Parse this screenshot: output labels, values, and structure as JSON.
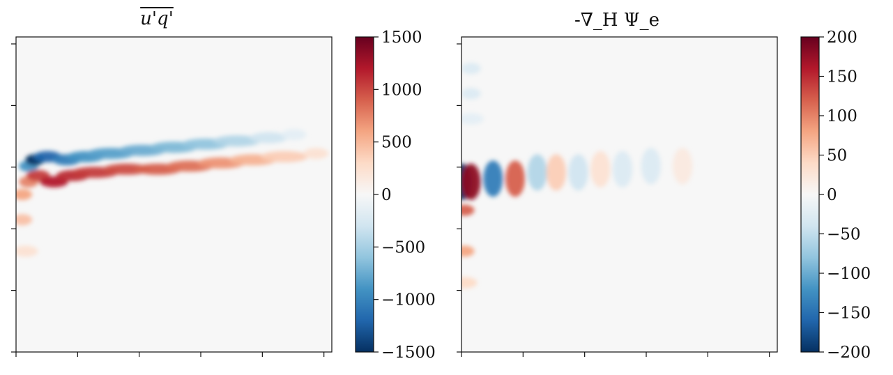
{
  "chart_data": [
    {
      "type": "heatmap",
      "title": "u'q'",
      "title_overline": true,
      "xlabel": "",
      "ylabel": "",
      "x_tick_labels_visible": false,
      "y_tick_labels_visible": false,
      "x_ticks_count": 6,
      "y_ticks_count": 6,
      "colormap": "RdBu_r",
      "colorbar": {
        "vmin": -1500,
        "vmax": 1500,
        "ticks": [
          1500,
          1000,
          500,
          0,
          -500,
          -1000,
          -1500
        ],
        "tick_labels": [
          "1500",
          "1000",
          "500",
          "0",
          "−500",
          "−1000",
          "−1500"
        ]
      },
      "features": [
        {
          "kind": "band",
          "sign": "negative",
          "x": [
            0.04,
            0.06,
            0.1,
            0.16,
            0.22,
            0.3,
            0.4,
            0.5,
            0.6,
            0.7,
            0.8,
            0.88
          ],
          "y": [
            0.41,
            0.39,
            0.38,
            0.39,
            0.38,
            0.37,
            0.36,
            0.35,
            0.34,
            0.33,
            0.32,
            0.31
          ],
          "amplitude": [
            -0.6,
            -1.0,
            -0.8,
            -0.7,
            -0.6,
            -0.55,
            -0.5,
            -0.45,
            -0.4,
            -0.3,
            -0.2,
            -0.1
          ]
        },
        {
          "kind": "band",
          "sign": "positive",
          "x": [
            0.04,
            0.07,
            0.12,
            0.18,
            0.25,
            0.35,
            0.45,
            0.55,
            0.65,
            0.75,
            0.85,
            0.95
          ],
          "y": [
            0.46,
            0.44,
            0.46,
            0.44,
            0.43,
            0.42,
            0.42,
            0.41,
            0.4,
            0.39,
            0.38,
            0.37
          ],
          "amplitude": [
            0.5,
            0.7,
            0.8,
            0.75,
            0.7,
            0.65,
            0.6,
            0.55,
            0.45,
            0.35,
            0.25,
            0.15
          ]
        },
        {
          "kind": "band",
          "sign": "positive",
          "x": [
            0.02,
            0.02,
            0.03
          ],
          "y": [
            0.5,
            0.58,
            0.68
          ],
          "amplitude": [
            0.4,
            0.3,
            0.15
          ]
        }
      ]
    },
    {
      "type": "heatmap",
      "title": "-∇_H Ψ_e",
      "xlabel": "",
      "ylabel": "",
      "x_tick_labels_visible": false,
      "y_tick_labels_visible": false,
      "x_ticks_count": 6,
      "y_ticks_count": 6,
      "colormap": "RdBu_r",
      "colorbar": {
        "vmin": -200,
        "vmax": 200,
        "ticks": [
          200,
          150,
          100,
          50,
          0,
          -50,
          -100,
          -150,
          -200
        ],
        "tick_labels": [
          "200",
          "150",
          "100",
          "50",
          "0",
          "−50",
          "−100",
          "−150",
          "−200"
        ]
      },
      "features": [
        {
          "kind": "blob",
          "x": 0.003,
          "y": 0.46,
          "amplitude": -1.0
        },
        {
          "kind": "blob",
          "x": 0.03,
          "y": 0.46,
          "amplitude": 0.9
        },
        {
          "kind": "blob",
          "x": 0.1,
          "y": 0.45,
          "amplitude": -0.7
        },
        {
          "kind": "blob",
          "x": 0.17,
          "y": 0.45,
          "amplitude": 0.6
        },
        {
          "kind": "blob",
          "x": 0.24,
          "y": 0.43,
          "amplitude": -0.3
        },
        {
          "kind": "blob",
          "x": 0.3,
          "y": 0.43,
          "amplitude": 0.25
        },
        {
          "kind": "blob",
          "x": 0.37,
          "y": 0.43,
          "amplitude": -0.2
        },
        {
          "kind": "blob",
          "x": 0.44,
          "y": 0.42,
          "amplitude": 0.15
        },
        {
          "kind": "blob",
          "x": 0.51,
          "y": 0.42,
          "amplitude": -0.15
        },
        {
          "kind": "blob",
          "x": 0.6,
          "y": 0.41,
          "amplitude": -0.15
        },
        {
          "kind": "blob",
          "x": 0.7,
          "y": 0.41,
          "amplitude": 0.1
        },
        {
          "kind": "band",
          "sign": "positive",
          "x": [
            0.01,
            0.01,
            0.01
          ],
          "y": [
            0.55,
            0.68,
            0.78
          ],
          "amplitude": [
            0.6,
            0.4,
            0.2
          ]
        },
        {
          "kind": "band",
          "sign": "negative",
          "x": [
            0.03,
            0.03,
            0.03
          ],
          "y": [
            0.1,
            0.18,
            0.26
          ],
          "amplitude": [
            -0.15,
            -0.15,
            -0.1
          ]
        }
      ]
    }
  ]
}
